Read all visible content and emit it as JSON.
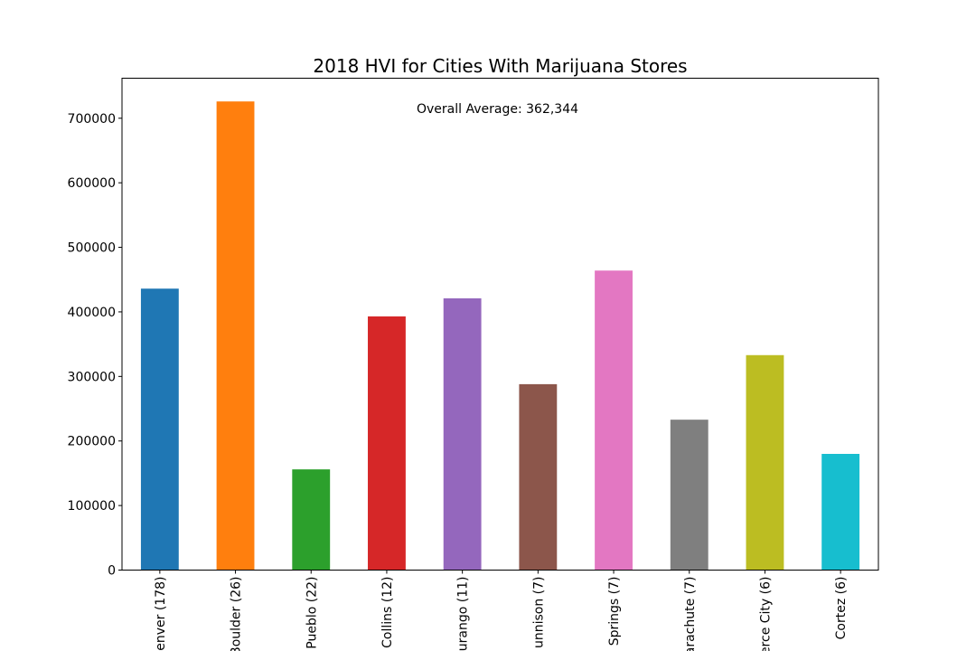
{
  "chart_data": {
    "type": "bar",
    "title": "2018 HVI for Cities With Marijuana Stores",
    "xlabel": "",
    "ylabel": "",
    "annotation": "Overall Average: 362,344",
    "categories": [
      "enver (178)",
      "Boulder (26)",
      "Pueblo (22)",
      "Collins (12)",
      "urango (11)",
      "unnison (7)",
      "Springs (7)",
      "arachute (7)",
      "erce City (6)",
      "Cortez (6)"
    ],
    "values": [
      436000,
      726000,
      156000,
      393000,
      421000,
      288000,
      464000,
      233000,
      333000,
      180000
    ],
    "colors": [
      "#1f77b4",
      "#ff7f0e",
      "#2ca02c",
      "#d62728",
      "#9467bd",
      "#8c564b",
      "#e377c2",
      "#7f7f7f",
      "#bcbd22",
      "#17becf"
    ],
    "ylim": [
      0,
      762000
    ],
    "yticks": [
      0,
      100000,
      200000,
      300000,
      400000,
      500000,
      600000,
      700000
    ],
    "ytick_labels": [
      "0",
      "100000",
      "200000",
      "300000",
      "400000",
      "500000",
      "600000",
      "700000"
    ],
    "grid": false,
    "legend": "none"
  }
}
